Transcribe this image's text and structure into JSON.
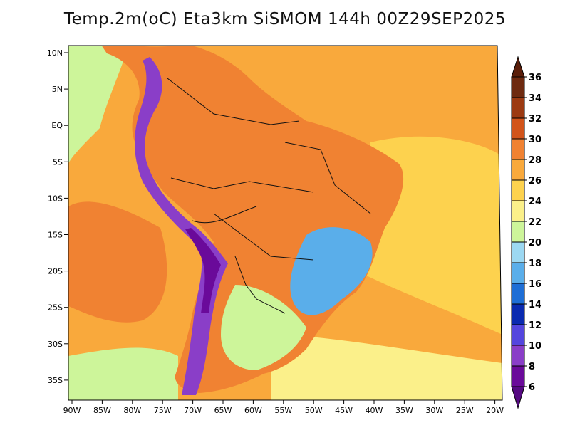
{
  "title": "Temp.2m(oC) Eta3km SiSMOM 144h 00Z29SEP2025",
  "lat_ticks": [
    {
      "value": 10,
      "label": "10N"
    },
    {
      "value": 5,
      "label": "5N"
    },
    {
      "value": 0,
      "label": "EQ"
    },
    {
      "value": -5,
      "label": "5S"
    },
    {
      "value": -10,
      "label": "10S"
    },
    {
      "value": -15,
      "label": "15S"
    },
    {
      "value": -20,
      "label": "20S"
    },
    {
      "value": -25,
      "label": "25S"
    },
    {
      "value": -30,
      "label": "30S"
    },
    {
      "value": -35,
      "label": "35S"
    }
  ],
  "lon_ticks": [
    {
      "value": -90,
      "label": "90W"
    },
    {
      "value": -85,
      "label": "85W"
    },
    {
      "value": -80,
      "label": "80W"
    },
    {
      "value": -75,
      "label": "75W"
    },
    {
      "value": -70,
      "label": "70W"
    },
    {
      "value": -65,
      "label": "65W"
    },
    {
      "value": -60,
      "label": "60W"
    },
    {
      "value": -55,
      "label": "55W"
    },
    {
      "value": -50,
      "label": "50W"
    },
    {
      "value": -45,
      "label": "45W"
    },
    {
      "value": -40,
      "label": "40W"
    },
    {
      "value": -35,
      "label": "35W"
    },
    {
      "value": -30,
      "label": "30W"
    },
    {
      "value": -25,
      "label": "25W"
    },
    {
      "value": -20,
      "label": "20W"
    }
  ],
  "colorbar": {
    "unit": "oC",
    "labels": [
      "36",
      "34",
      "32",
      "30",
      "28",
      "26",
      "24",
      "22",
      "20",
      "18",
      "16",
      "14",
      "12",
      "10",
      "8",
      "6"
    ],
    "bins": [
      {
        "min": 34,
        "max": 36,
        "color": "#6e2a10"
      },
      {
        "min": 32,
        "max": 34,
        "color": "#9c3a12"
      },
      {
        "min": 30,
        "max": 32,
        "color": "#d2541a"
      },
      {
        "min": 28,
        "max": 30,
        "color": "#f08232"
      },
      {
        "min": 26,
        "max": 28,
        "color": "#f9a93c"
      },
      {
        "min": 24,
        "max": 26,
        "color": "#fdd24e"
      },
      {
        "min": 22,
        "max": 24,
        "color": "#fbf08a"
      },
      {
        "min": 20,
        "max": 22,
        "color": "#cdf59a"
      },
      {
        "min": 18,
        "max": 20,
        "color": "#9cd8f2"
      },
      {
        "min": 16,
        "max": 18,
        "color": "#5aaeea"
      },
      {
        "min": 14,
        "max": 16,
        "color": "#1e6ed6"
      },
      {
        "min": 12,
        "max": 14,
        "color": "#0a2ab0"
      },
      {
        "min": 10,
        "max": 12,
        "color": "#5446de"
      },
      {
        "min": 8,
        "max": 10,
        "color": "#8a3ec8"
      },
      {
        "min": 6,
        "max": 8,
        "color": "#6a0a9a"
      }
    ],
    "above_color": "#5a1e0a",
    "below_color": "#560a82"
  },
  "legend_colors": {
    "ocean_warm": "#f9a93c",
    "ocean_hot": "#f08232",
    "ocean_mild": "#fdd24e",
    "ocean_cool": "#fbf08a",
    "ocean_cold": "#cdf59a",
    "land_hot": "#f08232",
    "land_mild": "#fdd24e",
    "andes": "#8a3ec8",
    "andes_peak": "#6a0a9a",
    "highlands": "#5aaeea",
    "highlands_cool": "#9cd8f2",
    "south_cool": "#cdf59a",
    "border": "#111111"
  }
}
